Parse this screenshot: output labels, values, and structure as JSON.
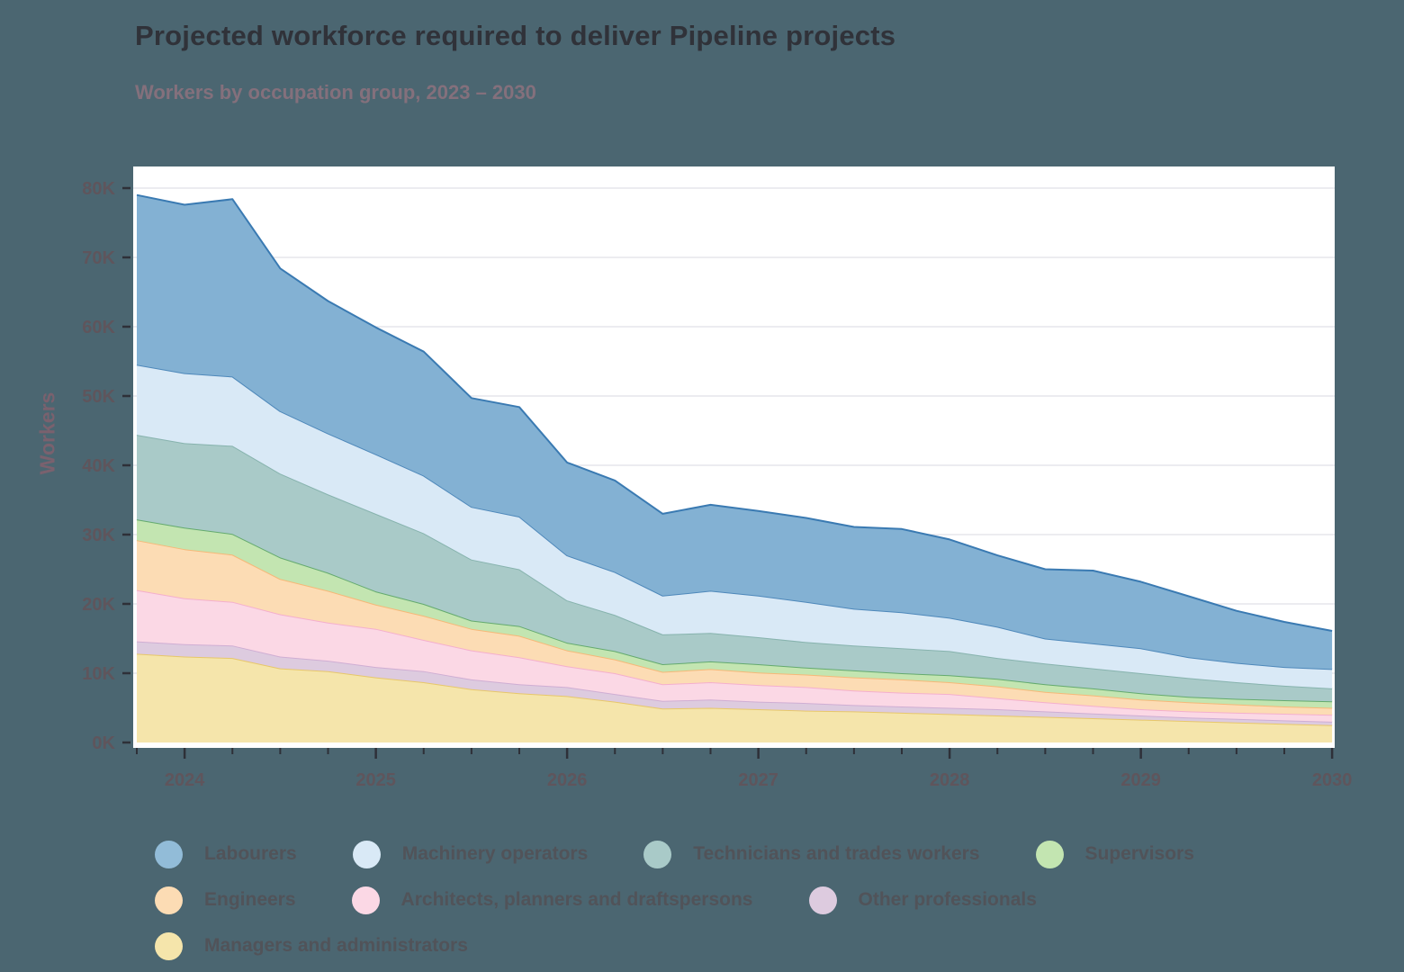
{
  "header": {
    "title": "Projected workforce required to deliver Pipeline projects",
    "subtitle": "Workers by occupation group, 2023 – 2030"
  },
  "chart_data": {
    "type": "area",
    "stacked": true,
    "title": "Projected workforce required to deliver Pipeline projects",
    "subtitle": "Workers by occupation group, 2023 – 2030",
    "xlabel": "",
    "ylabel": "Workers",
    "units": "thousands of workers",
    "ylim": [
      0,
      83
    ],
    "grid": true,
    "x": [
      2023.75,
      2024.0,
      2024.25,
      2024.5,
      2024.75,
      2025.0,
      2025.25,
      2025.5,
      2025.75,
      2026.0,
      2026.25,
      2026.5,
      2026.75,
      2027.0,
      2027.25,
      2027.5,
      2027.75,
      2028.0,
      2028.25,
      2028.5,
      2028.75,
      2029.0,
      2029.25,
      2029.5,
      2029.75,
      2030.0
    ],
    "x_tick_labels": [
      "2024",
      "2025",
      "2026",
      "2027",
      "2028",
      "2029",
      "2030"
    ],
    "y_ticks": [
      {
        "value": 0,
        "label": "0K"
      },
      {
        "value": 10,
        "label": "10K"
      },
      {
        "value": 20,
        "label": "20K"
      },
      {
        "value": 30,
        "label": "30K"
      },
      {
        "value": 40,
        "label": "40K"
      },
      {
        "value": 50,
        "label": "50K"
      },
      {
        "value": 60,
        "label": "60K"
      },
      {
        "value": 70,
        "label": "70K"
      },
      {
        "value": 80,
        "label": "80K"
      }
    ],
    "series": [
      {
        "name": "Managers and administrators",
        "fill": "#f5e5ab",
        "line": "#e7c76a",
        "values": [
          12.8,
          12.4,
          12.2,
          10.7,
          10.3,
          9.4,
          8.7,
          7.7,
          7.1,
          6.7,
          5.9,
          4.9,
          5.0,
          4.8,
          4.6,
          4.5,
          4.3,
          4.1,
          3.9,
          3.7,
          3.5,
          3.3,
          3.1,
          2.9,
          2.7,
          2.5
        ]
      },
      {
        "name": "Other professionals",
        "fill": "#ddcbdf",
        "line": "#cfaed3",
        "values": [
          1.8,
          1.8,
          1.8,
          1.7,
          1.5,
          1.5,
          1.6,
          1.4,
          1.3,
          1.3,
          1.1,
          1.1,
          1.2,
          1.1,
          1.1,
          0.9,
          0.9,
          0.9,
          0.9,
          0.8,
          0.7,
          0.6,
          0.5,
          0.5,
          0.5,
          0.5
        ]
      },
      {
        "name": "Architects, planners and draftspersons",
        "fill": "#fbd8e5",
        "line": "#f4afcd",
        "values": [
          7.4,
          6.6,
          6.3,
          6.1,
          5.5,
          5.5,
          4.5,
          4.2,
          3.9,
          3.0,
          3.0,
          2.4,
          2.5,
          2.4,
          2.3,
          2.1,
          2.0,
          2.0,
          1.6,
          1.3,
          1.1,
          0.9,
          0.9,
          0.9,
          0.95,
          1.0
        ]
      },
      {
        "name": "Engineers",
        "fill": "#fcdcb4",
        "line": "#f6b878",
        "values": [
          7.2,
          7.1,
          6.8,
          5.1,
          4.6,
          3.5,
          3.5,
          3.1,
          3.1,
          2.3,
          2.0,
          1.8,
          1.9,
          1.8,
          1.8,
          1.9,
          1.9,
          1.7,
          1.7,
          1.5,
          1.5,
          1.4,
          1.3,
          1.2,
          1.05,
          1.0
        ]
      },
      {
        "name": "Supervisors",
        "fill": "#c3e5b1",
        "line": "#64aa6e",
        "values": [
          3.0,
          3.1,
          3.0,
          3.1,
          2.6,
          1.9,
          1.7,
          1.2,
          1.4,
          1.1,
          1.2,
          1.1,
          1.1,
          1.2,
          1.0,
          1.0,
          0.9,
          1.0,
          1.1,
          1.1,
          1.0,
          0.9,
          0.8,
          0.8,
          0.9,
          0.95
        ]
      },
      {
        "name": "Technicians and trades workers",
        "fill": "#a9cac8",
        "line": "#87b3ae",
        "values": [
          12.2,
          12.2,
          12.7,
          12.1,
          11.3,
          11.2,
          10.2,
          8.8,
          8.2,
          6.1,
          5.2,
          4.3,
          4.1,
          3.9,
          3.7,
          3.6,
          3.6,
          3.5,
          3.0,
          3.0,
          2.9,
          2.9,
          2.7,
          2.4,
          2.1,
          1.85
        ]
      },
      {
        "name": "Machinery operators",
        "fill": "#d9e9f6",
        "line": "#4e88ba",
        "values": [
          10.1,
          10.1,
          10.0,
          9.0,
          8.8,
          8.6,
          8.3,
          7.6,
          7.6,
          6.5,
          6.2,
          5.6,
          6.1,
          6.0,
          5.8,
          5.3,
          5.2,
          4.8,
          4.5,
          3.6,
          3.6,
          3.6,
          3.0,
          2.8,
          2.7,
          2.8
        ]
      },
      {
        "name": "Labourers",
        "fill": "#83b1d3",
        "line": "#3a7ab2",
        "values": [
          24.5,
          24.3,
          25.6,
          20.6,
          19.1,
          18.3,
          17.9,
          15.7,
          15.8,
          13.4,
          13.2,
          11.8,
          12.4,
          12.2,
          12.1,
          11.8,
          12.0,
          11.3,
          10.3,
          10.0,
          10.5,
          9.6,
          8.8,
          7.5,
          6.5,
          5.5
        ]
      }
    ],
    "legend_position": "bottom"
  },
  "legend": {
    "items": [
      {
        "label": "Labourers",
        "color": "#92bcd8"
      },
      {
        "label": "Machinery operators",
        "color": "#d9e9f6"
      },
      {
        "label": "Technicians and trades workers",
        "color": "#a9cac8"
      },
      {
        "label": "Supervisors",
        "color": "#c3e5b1"
      },
      {
        "label": "Engineers",
        "color": "#fcdcb4"
      },
      {
        "label": "Architects, planners and draftspersons",
        "color": "#fbd8e5"
      },
      {
        "label": "Other professionals",
        "color": "#ddcbdf"
      },
      {
        "label": "Managers and administrators",
        "color": "#f5e5ab"
      }
    ]
  }
}
